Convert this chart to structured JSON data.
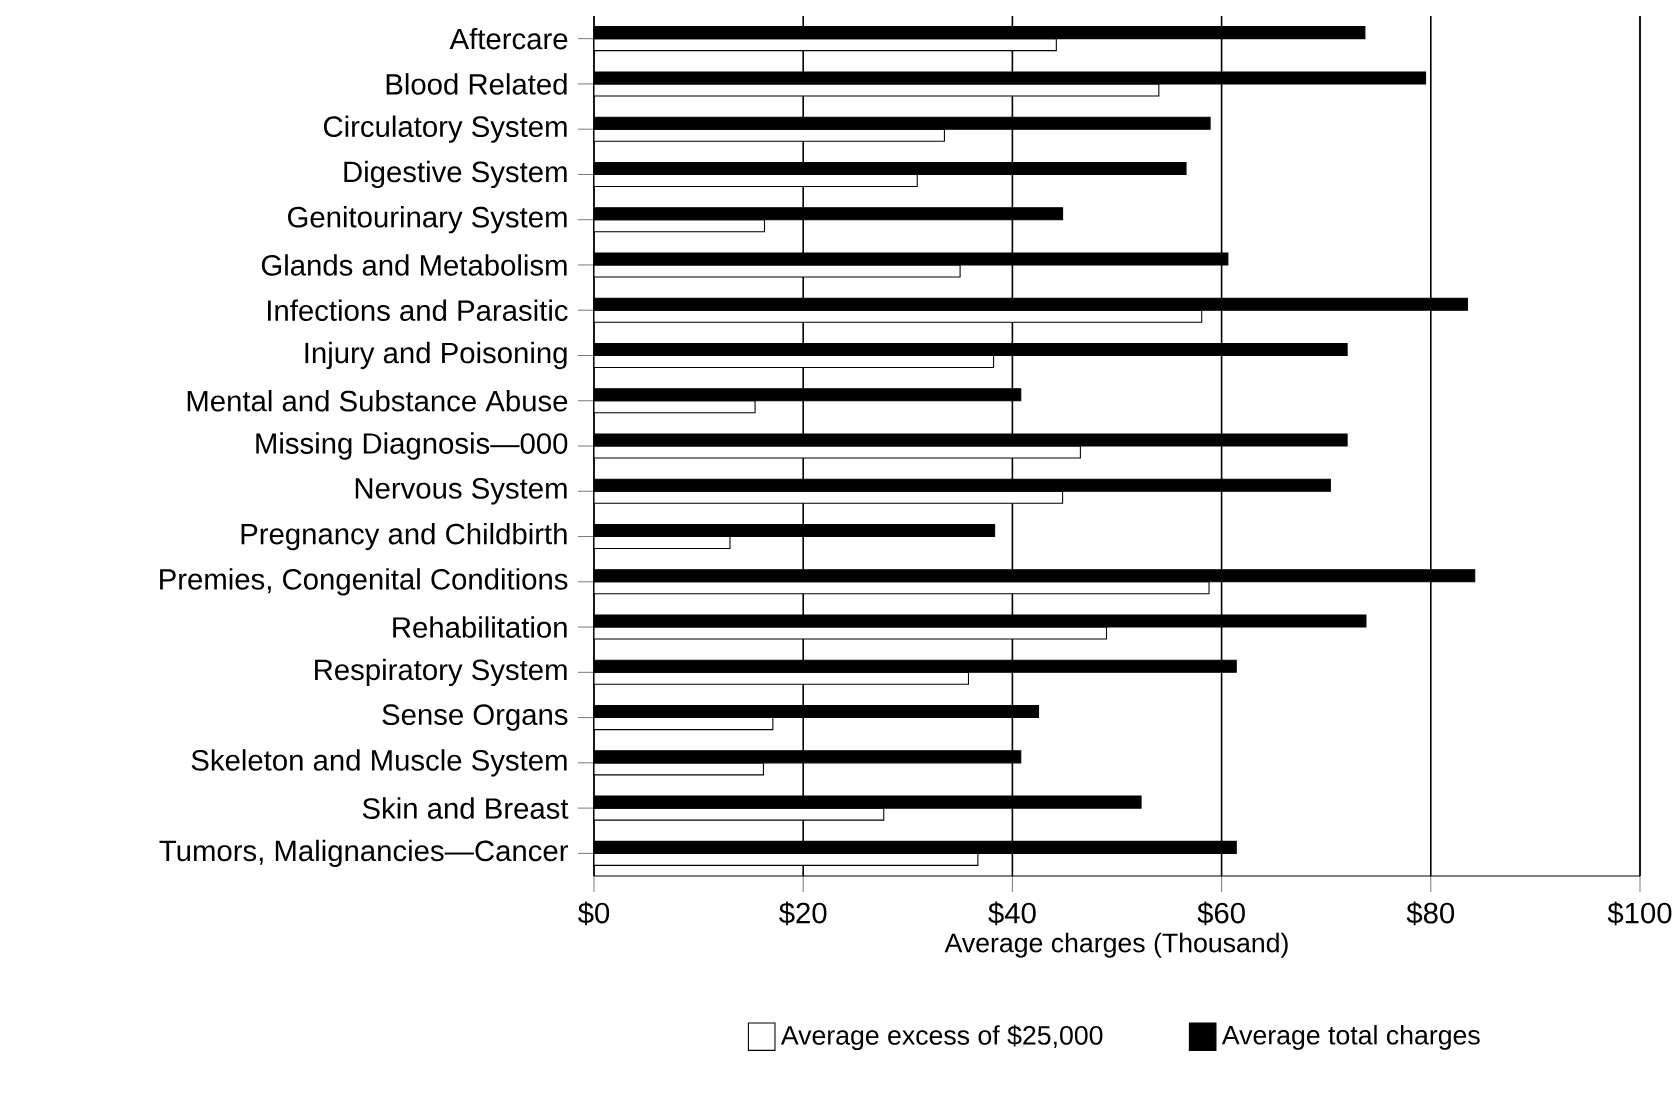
{
  "chart_data": {
    "type": "bar",
    "orientation": "horizontal",
    "xlabel": "Average charges (Thousand)",
    "categories": [
      "Aftercare",
      "Blood Related",
      "Circulatory System",
      "Digestive System",
      "Genitourinary System",
      "Glands and Metabolism",
      "Infections and Parasitic",
      "Injury and Poisoning",
      "Mental and Substance Abuse",
      "Missing Diagnosis—000",
      "Nervous System",
      "Pregnancy and Childbirth",
      "Premies, Congenital Conditions",
      "Rehabilitation",
      "Respiratory System",
      "Sense Organs",
      "Skeleton and Muscle System",
      "Skin and Breast",
      "Tumors, Malignancies—Cancer"
    ],
    "series": [
      {
        "name": "Average excess of $25,000",
        "color": "#ffffff",
        "values": [
          44.2,
          54.0,
          33.5,
          30.9,
          16.3,
          35.0,
          58.1,
          38.2,
          15.4,
          46.5,
          44.8,
          13.0,
          58.8,
          49.0,
          35.8,
          17.1,
          16.2,
          27.7,
          36.7
        ]
      },
      {
        "name": "Average total charges",
        "color": "#000000",
        "values": [
          73.7,
          79.5,
          58.9,
          56.6,
          44.8,
          60.6,
          83.5,
          72.0,
          40.8,
          72.0,
          70.4,
          38.3,
          84.2,
          73.8,
          61.4,
          42.5,
          40.8,
          52.3,
          61.4
        ]
      }
    ],
    "xlim": [
      0,
      100
    ],
    "xticks": [
      {
        "value": 0,
        "label": "$0"
      },
      {
        "value": 20,
        "label": "$20"
      },
      {
        "value": 40,
        "label": "$40"
      },
      {
        "value": 60,
        "label": "$60"
      },
      {
        "value": 80,
        "label": "$80"
      },
      {
        "value": 100,
        "label": "$100"
      }
    ],
    "grid": "x",
    "legend": "bottom"
  }
}
